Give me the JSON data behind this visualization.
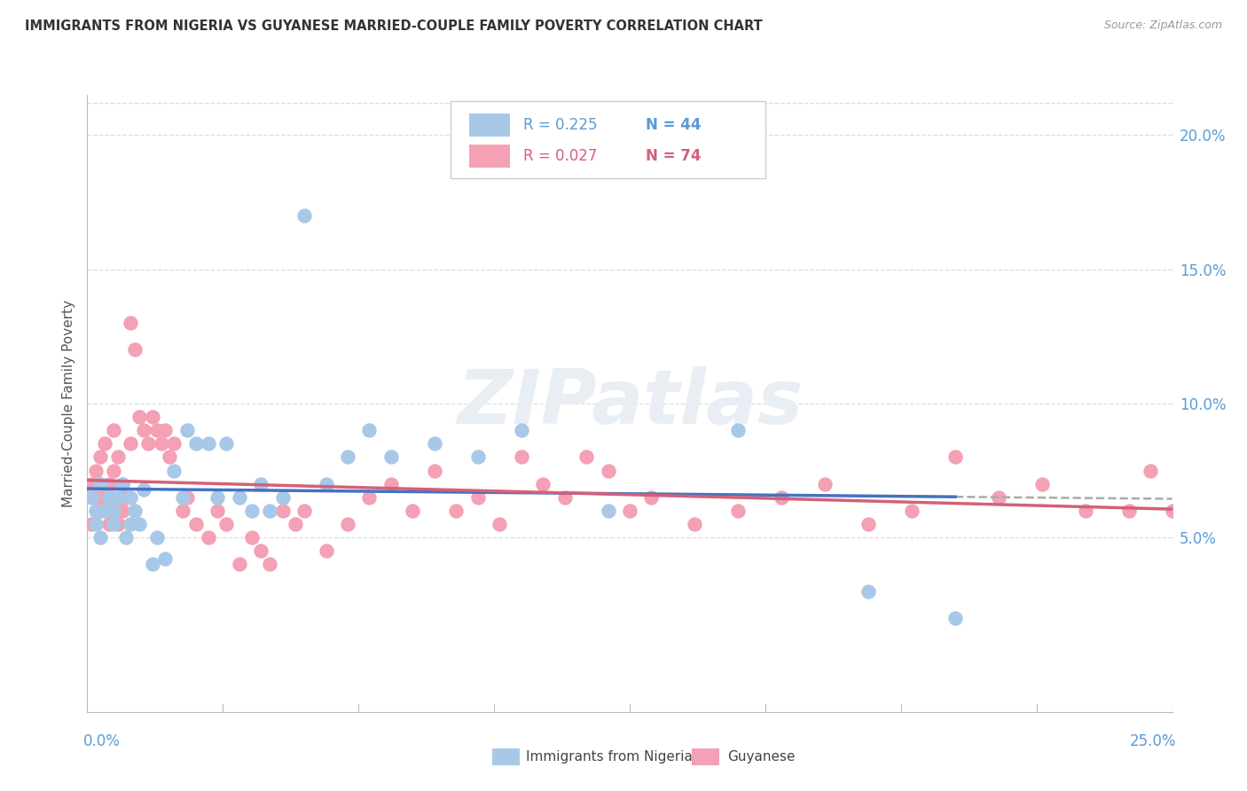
{
  "title": "IMMIGRANTS FROM NIGERIA VS GUYANESE MARRIED-COUPLE FAMILY POVERTY CORRELATION CHART",
  "source": "Source: ZipAtlas.com",
  "ylabel": "Married-Couple Family Poverty",
  "legend_label1": "Immigrants from Nigeria",
  "legend_label2": "Guyanese",
  "R1": 0.225,
  "N1": 44,
  "R2": 0.027,
  "N2": 74,
  "color1": "#a8c8e8",
  "color2": "#f4a0b5",
  "line_color1": "#4472c4",
  "line_color2": "#d4607a",
  "dash_color": "#aaaaaa",
  "watermark_color": "#e8eef4",
  "title_color": "#333333",
  "source_color": "#999999",
  "ylabel_color": "#555555",
  "axis_color": "#bbbbbb",
  "grid_color": "#dddddd",
  "tick_color": "#5b9bd5",
  "xmin": 0.0,
  "xmax": 0.25,
  "ymin": -0.015,
  "ymax": 0.215,
  "right_yticks": [
    0.05,
    0.1,
    0.15,
    0.2
  ],
  "right_yticklabels": [
    "5.0%",
    "10.0%",
    "15.0%",
    "20.0%"
  ],
  "nigeria_x": [
    0.001,
    0.002,
    0.002,
    0.003,
    0.003,
    0.004,
    0.005,
    0.006,
    0.006,
    0.007,
    0.008,
    0.009,
    0.01,
    0.01,
    0.011,
    0.012,
    0.013,
    0.015,
    0.016,
    0.018,
    0.02,
    0.022,
    0.023,
    0.025,
    0.028,
    0.03,
    0.032,
    0.035,
    0.038,
    0.04,
    0.042,
    0.045,
    0.05,
    0.055,
    0.06,
    0.065,
    0.07,
    0.08,
    0.09,
    0.1,
    0.12,
    0.15,
    0.18,
    0.2
  ],
  "nigeria_y": [
    0.065,
    0.06,
    0.055,
    0.07,
    0.05,
    0.06,
    0.065,
    0.055,
    0.06,
    0.065,
    0.07,
    0.05,
    0.055,
    0.065,
    0.06,
    0.055,
    0.068,
    0.04,
    0.05,
    0.042,
    0.075,
    0.065,
    0.09,
    0.085,
    0.085,
    0.065,
    0.085,
    0.065,
    0.06,
    0.07,
    0.06,
    0.065,
    0.17,
    0.07,
    0.08,
    0.09,
    0.08,
    0.085,
    0.08,
    0.09,
    0.06,
    0.09,
    0.03,
    0.02
  ],
  "guyanese_x": [
    0.001,
    0.001,
    0.002,
    0.002,
    0.003,
    0.003,
    0.003,
    0.004,
    0.004,
    0.005,
    0.005,
    0.005,
    0.006,
    0.006,
    0.006,
    0.007,
    0.007,
    0.008,
    0.008,
    0.009,
    0.01,
    0.01,
    0.011,
    0.012,
    0.013,
    0.014,
    0.015,
    0.016,
    0.017,
    0.018,
    0.019,
    0.02,
    0.022,
    0.023,
    0.025,
    0.028,
    0.03,
    0.032,
    0.035,
    0.038,
    0.04,
    0.042,
    0.045,
    0.048,
    0.05,
    0.055,
    0.06,
    0.065,
    0.07,
    0.075,
    0.08,
    0.085,
    0.09,
    0.095,
    0.1,
    0.105,
    0.11,
    0.115,
    0.12,
    0.125,
    0.13,
    0.14,
    0.15,
    0.16,
    0.17,
    0.18,
    0.19,
    0.2,
    0.21,
    0.22,
    0.23,
    0.24,
    0.245,
    0.25
  ],
  "guyanese_y": [
    0.07,
    0.055,
    0.065,
    0.075,
    0.06,
    0.07,
    0.08,
    0.065,
    0.085,
    0.06,
    0.07,
    0.055,
    0.075,
    0.09,
    0.065,
    0.08,
    0.055,
    0.07,
    0.06,
    0.065,
    0.13,
    0.085,
    0.12,
    0.095,
    0.09,
    0.085,
    0.095,
    0.09,
    0.085,
    0.09,
    0.08,
    0.085,
    0.06,
    0.065,
    0.055,
    0.05,
    0.06,
    0.055,
    0.04,
    0.05,
    0.045,
    0.04,
    0.06,
    0.055,
    0.06,
    0.045,
    0.055,
    0.065,
    0.07,
    0.06,
    0.075,
    0.06,
    0.065,
    0.055,
    0.08,
    0.07,
    0.065,
    0.08,
    0.075,
    0.06,
    0.065,
    0.055,
    0.06,
    0.065,
    0.07,
    0.055,
    0.06,
    0.08,
    0.065,
    0.07,
    0.06,
    0.06,
    0.075,
    0.06
  ]
}
